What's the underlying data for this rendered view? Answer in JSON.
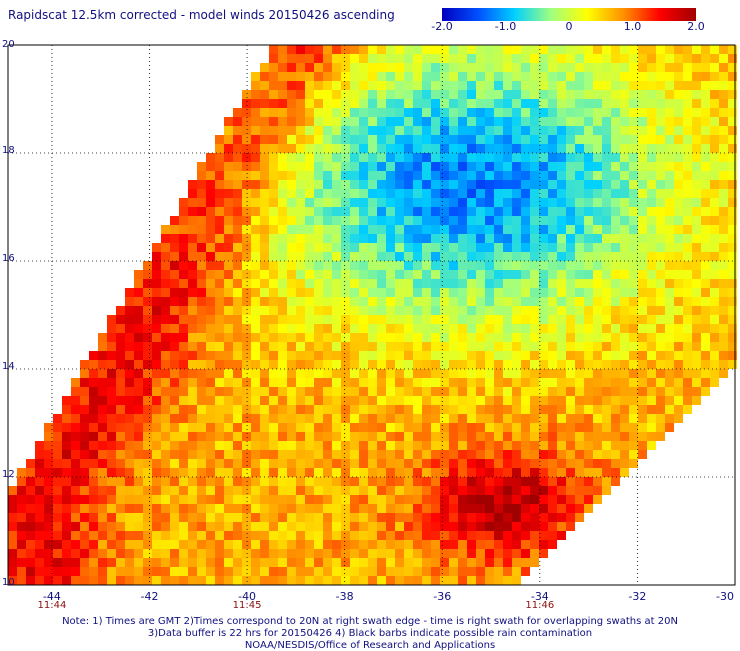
{
  "title": "Rapidscat 12.5km corrected - model winds 20150426 ascending",
  "colorbar": {
    "ticks": [
      "-2.0",
      "-1.0",
      "0",
      "1.0",
      "2.0"
    ],
    "range": [
      -2.0,
      2.0
    ],
    "colors": [
      "#0000c0",
      "#0050ff",
      "#00d0ff",
      "#a0ff80",
      "#ffff00",
      "#ff9000",
      "#ff0000",
      "#a00000"
    ]
  },
  "map": {
    "lat_labels": [
      "20",
      "18",
      "16",
      "14",
      "12",
      "10"
    ],
    "lon_labels": [
      "-44",
      "-42",
      "-40",
      "-38",
      "-36",
      "-34",
      "-32",
      "-30"
    ],
    "lat_range": [
      10,
      20
    ],
    "lon_range": [
      -44.9,
      -30
    ],
    "grid": "dotted",
    "time_labels": [
      {
        "text": "11:44",
        "lon": -44
      },
      {
        "text": "11:45",
        "lon": -40
      },
      {
        "text": "11:46",
        "lon": -34
      }
    ]
  },
  "notes": [
    "Note: 1) Times are GMT 2)Times correspond to 20N at right swath edge - time is right swath for overlapping swaths at 20N",
    "3)Data buffer is 22 hrs for 20150426 4) Black barbs indicate possible rain contamination",
    "NOAA/NESDIS/Office of Research and Applications"
  ]
}
